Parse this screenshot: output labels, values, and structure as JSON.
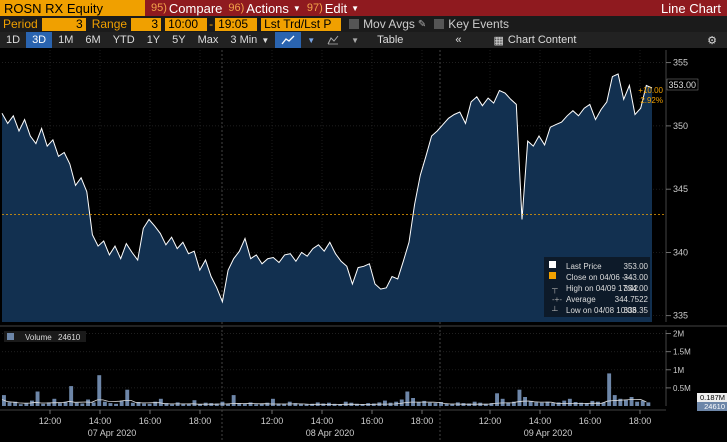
{
  "cmdbar": {
    "ticker": "ROSN RX Equity",
    "commands": [
      {
        "num": "95)",
        "label": "Compare"
      },
      {
        "num": "96)",
        "label": "Actions"
      },
      {
        "num": "97)",
        "label": "Edit"
      }
    ],
    "chart_type": "Line Chart"
  },
  "settings": {
    "period_label": "Period",
    "period_value": "3",
    "range_label": "Range",
    "range_value": "3",
    "start_time": "10:00",
    "range_sep": "-",
    "end_time": "19:05",
    "price_field": "Lst Trd/Lst P",
    "mov_avgs": "Mov Avgs",
    "key_events": "Key Events"
  },
  "toolbar": {
    "ranges": [
      "1D",
      "3D",
      "1M",
      "6M",
      "YTD",
      "1Y",
      "5Y",
      "Max"
    ],
    "active_range": "3D",
    "interval": "3 Min",
    "table_label": "Table",
    "collapse_label": "«",
    "chart_content_label": "Chart Content"
  },
  "colors": {
    "accent": "#f0a000",
    "command_bar": "#8f1a1f",
    "price_fill": "#123050",
    "price_line": "#ffffff",
    "volume_bar": "#6d86a8",
    "highlight": "#2a64b0"
  },
  "legend": {
    "last_price_label": "Last Price",
    "last_price": "353.00",
    "close_label": "Close on 04/06 ----",
    "close": "343.00",
    "high_label": "High on 04/09 17:42",
    "high": "354.00",
    "average_label": "Average",
    "average": "344.7522",
    "low_label": "Low on 04/08 10:03",
    "low": "336.35"
  },
  "price_tag": {
    "last": "353.00",
    "change": "+10.00",
    "change_pct": "2.92%"
  },
  "volume": {
    "label": "Volume",
    "value": "24610",
    "last_tag": "24610",
    "ma_tag": "0.187M"
  },
  "chart_data": {
    "type": "line",
    "title": "",
    "xlabel": "",
    "ylabel": "",
    "ylim": [
      334.5,
      356
    ],
    "yticks": [
      335,
      340,
      345,
      350,
      355
    ],
    "reference_close": 343.0,
    "x_time_labels": [
      "12:00",
      "14:00",
      "16:00",
      "18:00",
      "12:00",
      "14:00",
      "16:00",
      "18:00",
      "12:00",
      "14:00",
      "16:00",
      "18:00"
    ],
    "x_date_labels": [
      "07 Apr 2020",
      "08 Apr 2020",
      "09 Apr 2020"
    ],
    "price_series": {
      "name": "Last Price",
      "values": [
        351,
        350.2,
        350.8,
        349.6,
        350.5,
        349.2,
        348.6,
        349.8,
        348.4,
        348.9,
        347.6,
        347.9,
        347,
        345.3,
        345.9,
        344.8,
        341.4,
        340.5,
        340.9,
        339.8,
        340.5,
        339.5,
        340.7,
        340,
        339.4,
        341.9,
        342.6,
        342.1,
        341.5,
        340.6,
        341.2,
        340.3,
        340.8,
        339.9,
        340.1,
        338.6,
        339.4,
        338.1,
        337.2,
        336.1,
        338.6,
        339.5,
        340.1,
        341.1,
        339.5,
        339.8,
        339.1,
        339.5,
        339.6,
        339.2,
        339.8,
        339.9,
        339.3,
        340,
        339.7,
        340.3,
        340.6,
        340.1,
        340.8,
        339.9,
        339.3,
        338.9,
        337.5,
        338.8,
        338.9,
        339.1,
        337.5,
        337.1,
        337.2,
        338.1,
        337.9,
        339.3,
        340.8,
        343.8,
        346.1,
        347.6,
        349.2,
        349.6,
        350.1,
        350.6,
        350.9,
        351.1,
        350.2,
        351.9,
        352.3,
        351.6,
        352.2,
        351.8,
        352.8,
        352.6,
        352.1,
        351.7,
        342.6,
        348.8,
        348.4,
        349.2,
        348.5,
        349.9,
        350.1,
        350.3,
        350.8,
        351.2,
        350.8,
        351.4,
        351.7,
        350.5,
        351.3,
        351.9,
        353.9,
        354.1,
        352.1,
        353.2,
        350.9,
        351.4,
        353.2,
        353
      ]
    },
    "volume_series": {
      "name": "Volume",
      "yticks": [
        "0.5M",
        "1M",
        "1.5M",
        "2M"
      ],
      "values": [
        0.3,
        0.1,
        0.12,
        0.05,
        0.08,
        0.15,
        0.4,
        0.06,
        0.1,
        0.2,
        0.08,
        0.12,
        0.55,
        0.09,
        0.07,
        0.18,
        0.1,
        0.85,
        0.12,
        0.08,
        0.06,
        0.15,
        0.45,
        0.09,
        0.11,
        0.07,
        0.06,
        0.12,
        0.2,
        0.08,
        0.05,
        0.1,
        0.07,
        0.06,
        0.16,
        0.05,
        0.09,
        0.08,
        0.07,
        0.12,
        0.06,
        0.3,
        0.08,
        0.07,
        0.1,
        0.05,
        0.06,
        0.09,
        0.2,
        0.07,
        0.06,
        0.12,
        0.08,
        0.07,
        0.05,
        0.06,
        0.1,
        0.07,
        0.09,
        0.06,
        0.05,
        0.12,
        0.09,
        0.06,
        0.05,
        0.08,
        0.07,
        0.1,
        0.15,
        0.09,
        0.12,
        0.18,
        0.4,
        0.22,
        0.1,
        0.14,
        0.09,
        0.08,
        0.11,
        0.07,
        0.06,
        0.1,
        0.08,
        0.07,
        0.12,
        0.09,
        0.06,
        0.08,
        0.35,
        0.2,
        0.1,
        0.12,
        0.45,
        0.25,
        0.14,
        0.1,
        0.09,
        0.12,
        0.08,
        0.1,
        0.15,
        0.2,
        0.11,
        0.09,
        0.08,
        0.14,
        0.12,
        0.1,
        0.9,
        0.3,
        0.2,
        0.18,
        0.25,
        0.12,
        0.15,
        0.1
      ]
    }
  }
}
